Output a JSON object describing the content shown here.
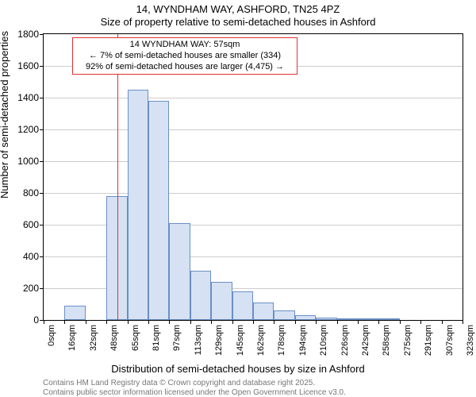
{
  "chart": {
    "type": "histogram",
    "title_main": "14, WYNDHAM WAY, ASHFORD, TN25 4PZ",
    "title_sub": "Size of property relative to semi-detached houses in Ashford",
    "y_axis": {
      "label": "Number of semi-detached properties",
      "min": 0,
      "max": 1800,
      "ticks": [
        0,
        200,
        400,
        600,
        800,
        1000,
        1200,
        1400,
        1600,
        1800
      ]
    },
    "x_axis": {
      "label": "Distribution of semi-detached houses by size in Ashford",
      "tick_step": 16,
      "ticks": [
        "0sqm",
        "16sqm",
        "32sqm",
        "48sqm",
        "65sqm",
        "81sqm",
        "97sqm",
        "113sqm",
        "129sqm",
        "145sqm",
        "162sqm",
        "178sqm",
        "194sqm",
        "210sqm",
        "226sqm",
        "242sqm",
        "258sqm",
        "275sqm",
        "291sqm",
        "307sqm",
        "323sqm"
      ],
      "range_max_sqm": 323
    },
    "bars": {
      "fill_color": "#d6e2f3",
      "border_color": "#6a8fc7",
      "values": [
        0,
        90,
        0,
        780,
        1450,
        1380,
        610,
        310,
        240,
        180,
        110,
        60,
        30,
        15,
        10,
        5,
        3,
        0,
        0,
        0
      ]
    },
    "gridline_color": "#cccccc",
    "background_color": "#ffffff",
    "marker": {
      "color": "#e03131",
      "sqm": 57
    },
    "annotation": {
      "border_color": "#e03131",
      "fill_color": "#ffffff",
      "line1": "14 WYNDHAM WAY: 57sqm",
      "line2": "← 7% of semi-detached houses are smaller (334)",
      "line3": "92% of semi-detached houses are larger (4,475) →"
    },
    "attribution": {
      "line1": "Contains HM Land Registry data © Crown copyright and database right 2025.",
      "line2": "Contains public sector information licensed under the Open Government Licence v3.0."
    }
  }
}
